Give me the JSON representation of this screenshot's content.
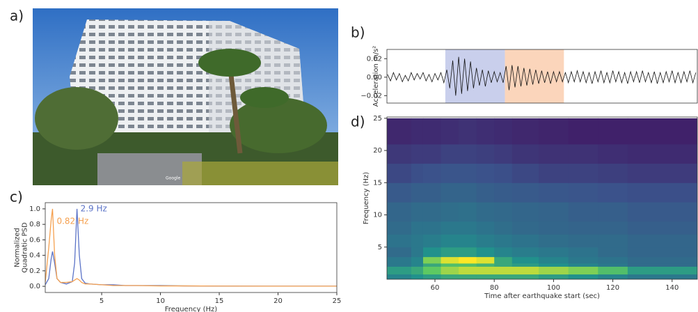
{
  "photo": {
    "label": "a)",
    "watermark": "Google"
  },
  "chart_data": [
    {
      "type": "line",
      "label": "b)",
      "ylabel": "Acceleration m/s²",
      "xlim": [
        43.8,
        148.5
      ],
      "ylim": [
        -0.028,
        0.03
      ],
      "yticks": [
        0.02,
        {
          "value": 0,
          "label": "0.00"
        },
        {
          "value": -0.02,
          "label": "−0.02"
        }
      ],
      "spans": [
        {
          "x": [
            63.5,
            83.6
          ],
          "color": "#c9cfec"
        },
        {
          "x": [
            83.6,
            103.5
          ],
          "color": "#fbd5bb"
        }
      ],
      "x": [
        44,
        45,
        46,
        47,
        48,
        49,
        50,
        51,
        52,
        53,
        54,
        55,
        56,
        57,
        58,
        59,
        60,
        61,
        62,
        63,
        64,
        65,
        66,
        67,
        68,
        69,
        70,
        71,
        72,
        73,
        74,
        75,
        76,
        77,
        78,
        79,
        80,
        81,
        82,
        83,
        84,
        85,
        86,
        87,
        88,
        89,
        90,
        91,
        92,
        93,
        94,
        95,
        96,
        97,
        98,
        99,
        100,
        101,
        102,
        103,
        104,
        105,
        106,
        107,
        108,
        109,
        110,
        111,
        112,
        113,
        114,
        115,
        116,
        117,
        118,
        119,
        120,
        121,
        122,
        123,
        124,
        125,
        126,
        127,
        128,
        129,
        130,
        131,
        132,
        133,
        134,
        135,
        136,
        137,
        138,
        139,
        140,
        141,
        142,
        143,
        144,
        145,
        146,
        147,
        148
      ],
      "series": [
        {
          "color": "#111111",
          "values": [
            0.003,
            -0.004,
            0.005,
            -0.003,
            0.004,
            -0.005,
            0.002,
            -0.004,
            0.005,
            -0.003,
            0.004,
            -0.002,
            0.005,
            -0.004,
            0.003,
            -0.005,
            0.004,
            -0.003,
            0.005,
            -0.006,
            0.008,
            -0.012,
            0.018,
            -0.02,
            0.022,
            -0.018,
            0.02,
            -0.015,
            0.017,
            -0.012,
            0.01,
            -0.009,
            0.008,
            -0.01,
            0.007,
            -0.006,
            0.006,
            -0.005,
            0.005,
            -0.006,
            0.012,
            -0.014,
            0.013,
            -0.011,
            0.012,
            -0.01,
            0.01,
            -0.009,
            0.009,
            -0.008,
            0.008,
            -0.007,
            0.007,
            -0.006,
            0.006,
            -0.007,
            0.006,
            -0.005,
            0.006,
            -0.005,
            0.005,
            -0.006,
            0.006,
            -0.005,
            0.007,
            -0.005,
            0.006,
            -0.006,
            0.005,
            -0.007,
            0.006,
            -0.005,
            0.007,
            -0.006,
            0.005,
            -0.006,
            0.007,
            -0.005,
            0.006,
            -0.006,
            0.005,
            -0.007,
            0.006,
            -0.005,
            0.006,
            -0.006,
            0.007,
            -0.005,
            0.005,
            -0.006,
            0.006,
            -0.007,
            0.005,
            -0.006,
            0.006,
            -0.005,
            0.007,
            -0.006,
            0.005,
            -0.006,
            0.006,
            -0.005,
            0.007,
            -0.006,
            0.005
          ]
        }
      ]
    },
    {
      "type": "line",
      "label": "c)",
      "ylabel": [
        "Normalized",
        "Quadratic PSD"
      ],
      "xlabel": "Frequency (Hz)",
      "xlim": [
        0.2,
        25
      ],
      "ylim": [
        -0.08,
        1.08
      ],
      "xticks": [
        5,
        10,
        15,
        20,
        25
      ],
      "yticks": [
        {
          "value": 0,
          "label": "0.0"
        },
        0.2,
        0.4,
        0.6,
        0.8,
        {
          "value": 1,
          "label": "1.0"
        }
      ],
      "x": [
        0.2,
        0.5,
        0.7,
        0.82,
        1.0,
        1.2,
        1.5,
        2.0,
        2.5,
        2.7,
        2.9,
        3.1,
        3.3,
        3.6,
        4,
        5,
        6,
        7,
        8,
        10,
        12,
        15,
        20,
        25
      ],
      "series": [
        {
          "name": "2.9 Hz",
          "color": "#5b73c7",
          "values": [
            0.02,
            0.1,
            0.35,
            0.45,
            0.3,
            0.1,
            0.05,
            0.03,
            0.06,
            0.3,
            1.0,
            0.4,
            0.1,
            0.04,
            0.03,
            0.02,
            0.02,
            0.01,
            0.01,
            0.01,
            0.005,
            0.003,
            0.002,
            0.002
          ]
        },
        {
          "name": "0.82 Hz",
          "color": "#f5a04f",
          "values": [
            0.05,
            0.5,
            0.85,
            1.0,
            0.4,
            0.1,
            0.05,
            0.05,
            0.06,
            0.08,
            0.1,
            0.08,
            0.05,
            0.03,
            0.03,
            0.02,
            0.01,
            0.01,
            0.01,
            0.005,
            0.005,
            0.003,
            0.002,
            0.002
          ]
        }
      ]
    },
    {
      "type": "heatmap",
      "label": "d)",
      "ylabel": "Frequency (Hz)",
      "xlabel": "Time after earthquake start (sec)",
      "xlim": [
        43.8,
        148.5
      ],
      "ylim": [
        0,
        25.2
      ],
      "xticks": [
        60,
        80,
        100,
        120,
        140
      ],
      "yticks": [
        5,
        10,
        15,
        20,
        25
      ],
      "colormap": "viridis",
      "zlim": [
        0,
        1
      ],
      "x_edges": [
        43.8,
        52,
        56,
        62,
        68,
        74,
        80,
        86,
        95,
        105,
        115,
        125,
        148.5
      ],
      "y_edges": [
        0,
        0.8,
        2,
        2.5,
        3.5,
        5,
        7,
        9,
        12,
        15,
        18,
        21,
        25
      ],
      "z": [
        [
          0.45,
          0.5,
          0.55,
          0.6,
          0.6,
          0.6,
          0.6,
          0.6,
          0.55,
          0.5,
          0.45,
          0.4
        ],
        [
          0.55,
          0.6,
          0.75,
          0.85,
          0.9,
          0.9,
          0.9,
          0.9,
          0.85,
          0.8,
          0.7,
          0.55
        ],
        [
          0.4,
          0.45,
          0.6,
          0.7,
          0.7,
          0.65,
          0.6,
          0.55,
          0.5,
          0.45,
          0.4,
          0.35
        ],
        [
          0.4,
          0.45,
          0.8,
          0.95,
          1.0,
          0.95,
          0.6,
          0.5,
          0.45,
          0.4,
          0.38,
          0.35
        ],
        [
          0.35,
          0.4,
          0.5,
          0.55,
          0.55,
          0.5,
          0.45,
          0.42,
          0.4,
          0.38,
          0.35,
          0.33
        ],
        [
          0.38,
          0.4,
          0.42,
          0.45,
          0.45,
          0.42,
          0.4,
          0.38,
          0.36,
          0.35,
          0.35,
          0.33
        ],
        [
          0.35,
          0.38,
          0.38,
          0.4,
          0.4,
          0.38,
          0.36,
          0.34,
          0.33,
          0.32,
          0.32,
          0.3
        ],
        [
          0.33,
          0.35,
          0.35,
          0.36,
          0.37,
          0.35,
          0.34,
          0.33,
          0.32,
          0.3,
          0.3,
          0.28
        ],
        [
          0.28,
          0.3,
          0.3,
          0.32,
          0.32,
          0.3,
          0.29,
          0.28,
          0.27,
          0.26,
          0.25,
          0.24
        ],
        [
          0.22,
          0.24,
          0.25,
          0.26,
          0.26,
          0.25,
          0.24,
          0.22,
          0.2,
          0.2,
          0.19,
          0.18
        ],
        [
          0.17,
          0.18,
          0.18,
          0.2,
          0.2,
          0.19,
          0.18,
          0.16,
          0.15,
          0.15,
          0.14,
          0.13
        ],
        [
          0.12,
          0.13,
          0.13,
          0.14,
          0.15,
          0.14,
          0.13,
          0.12,
          0.11,
          0.1,
          0.1,
          0.1
        ]
      ]
    }
  ]
}
